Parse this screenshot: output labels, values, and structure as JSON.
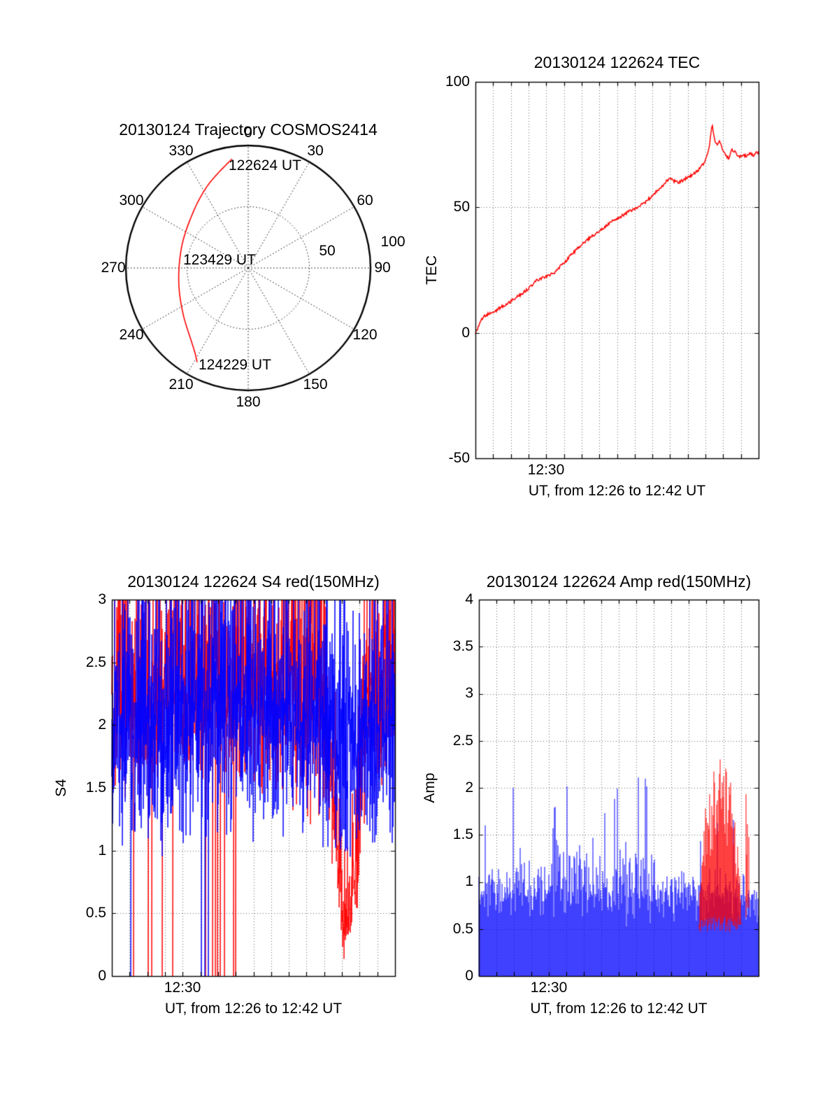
{
  "colors": {
    "red": "#ff0000",
    "blue": "#0000ff",
    "axis": "#000000",
    "grid": "#000000"
  },
  "charts": {
    "trajectory": {
      "type": "polar-trajectory",
      "title": "20130124 Trajectory COSMOS2414",
      "azimuth_labels": [
        "0",
        "30",
        "60",
        "90",
        "120",
        "150",
        "180",
        "210",
        "240",
        "270",
        "300",
        "330"
      ],
      "radial_ticks": [
        {
          "value": 50,
          "label": "50"
        },
        {
          "value": 100,
          "label": "100"
        }
      ],
      "r_max": 100,
      "path_polar_az_r": [
        [
          351.5,
          90
        ],
        [
          342,
          81
        ],
        [
          333,
          74.5
        ],
        [
          323,
          68
        ],
        [
          313,
          63
        ],
        [
          302,
          59.5
        ],
        [
          291,
          57.5
        ],
        [
          281,
          56.5
        ],
        [
          271,
          56.5
        ],
        [
          261,
          57.5
        ],
        [
          251,
          59.5
        ],
        [
          241,
          62.5
        ],
        [
          232,
          66.5
        ],
        [
          224,
          71
        ],
        [
          217,
          76.5
        ],
        [
          212,
          82
        ],
        [
          208.5,
          87.5
        ]
      ],
      "annotations": [
        {
          "text": "122624 UT"
        },
        {
          "text": "123429 UT"
        },
        {
          "text": "124229 UT"
        }
      ]
    },
    "tec": {
      "type": "line",
      "title": "20130124 122624 TEC",
      "ylabel": "TEC",
      "xlabel": "UT, from 12:26 to 12:42 UT",
      "xlim": [
        0,
        16
      ],
      "ylim": [
        -50,
        100
      ],
      "yticks": [
        100,
        50,
        0,
        -50
      ],
      "xtick": {
        "minute": 4,
        "label": "12:30"
      },
      "series": [
        {
          "name": "TEC",
          "color": "#ff0000",
          "jitter": 1.2,
          "seed": 505,
          "points": [
            [
              0,
              0
            ],
            [
              0.15,
              2
            ],
            [
              0.3,
              5
            ],
            [
              0.5,
              6.5
            ],
            [
              0.7,
              7.5
            ],
            [
              0.9,
              8
            ],
            [
              1.1,
              8.5
            ],
            [
              1.3,
              9.5
            ],
            [
              1.5,
              10.5
            ],
            [
              1.7,
              11
            ],
            [
              2,
              12.5
            ],
            [
              2.3,
              14
            ],
            [
              2.6,
              15.5
            ],
            [
              2.9,
              17
            ],
            [
              3.2,
              19
            ],
            [
              3.5,
              21
            ],
            [
              3.8,
              22
            ],
            [
              4.2,
              23
            ],
            [
              4.5,
              24
            ],
            [
              4.8,
              26.5
            ],
            [
              5.1,
              28.5
            ],
            [
              5.4,
              31
            ],
            [
              5.7,
              33
            ],
            [
              6,
              35
            ],
            [
              6.3,
              37
            ],
            [
              6.6,
              38.5
            ],
            [
              6.9,
              40
            ],
            [
              7.2,
              41.5
            ],
            [
              7.5,
              43.5
            ],
            [
              7.8,
              45
            ],
            [
              8.1,
              46
            ],
            [
              8.4,
              47
            ],
            [
              8.7,
              48.5
            ],
            [
              9,
              49.5
            ],
            [
              9.3,
              50.5
            ],
            [
              9.6,
              52
            ],
            [
              9.9,
              54
            ],
            [
              10.2,
              56
            ],
            [
              10.5,
              58
            ],
            [
              10.8,
              60.5
            ],
            [
              11,
              62
            ],
            [
              11.2,
              60.5
            ],
            [
              11.5,
              60
            ],
            [
              11.8,
              61
            ],
            [
              12,
              62
            ],
            [
              12.3,
              63
            ],
            [
              12.6,
              65
            ],
            [
              12.9,
              67.5
            ],
            [
              13.1,
              71
            ],
            [
              13.25,
              76
            ],
            [
              13.38,
              83
            ],
            [
              13.5,
              77
            ],
            [
              13.65,
              75
            ],
            [
              13.8,
              77
            ],
            [
              13.95,
              73
            ],
            [
              14.1,
              71
            ],
            [
              14.3,
              69.5
            ],
            [
              14.5,
              73
            ],
            [
              14.7,
              72
            ],
            [
              14.9,
              70
            ],
            [
              15.1,
              71
            ],
            [
              15.3,
              70.5
            ],
            [
              15.5,
              71.5
            ],
            [
              15.7,
              70.5
            ],
            [
              15.85,
              71.5
            ],
            [
              16,
              72
            ]
          ]
        }
      ]
    },
    "s4": {
      "type": "line",
      "title": "20130124 122624 S4 red(150MHz)",
      "ylabel": "S4",
      "xlabel": "UT, from 12:26 to 12:42 UT",
      "xlim": [
        0,
        16
      ],
      "ylim": [
        0,
        3
      ],
      "yticks": [
        3,
        2.5,
        2,
        1.5,
        1,
        0.5,
        0
      ],
      "xtick": {
        "minute": 4,
        "label": "12:30"
      },
      "series": [
        {
          "name": "S4 150MHz (red)",
          "color": "#ff0000",
          "seed": 101,
          "clip": [
            0,
            3
          ],
          "envelope": [
            [
              0,
              2.35,
              0.85
            ],
            [
              6,
              2.4,
              0.8
            ],
            [
              10,
              2.3,
              0.85
            ],
            [
              12,
              2.1,
              0.9
            ],
            [
              12.6,
              1.5,
              0.6
            ],
            [
              13,
              0.55,
              0.35
            ],
            [
              13.4,
              0.45,
              0.3
            ],
            [
              13.8,
              1.0,
              0.55
            ],
            [
              14.2,
              1.9,
              0.8
            ],
            [
              14.8,
              2.25,
              0.85
            ],
            [
              16,
              2.3,
              0.85
            ]
          ],
          "dropouts": {
            "t0": 0.2,
            "t1": 7.0,
            "prob": 0.07
          }
        },
        {
          "name": "S4 (blue)",
          "color": "#0000ff",
          "seed": 202,
          "clip": [
            0,
            3
          ],
          "envelope": [
            [
              0,
              1.95,
              0.85
            ],
            [
              3,
              2.05,
              0.9
            ],
            [
              7,
              2.15,
              0.9
            ],
            [
              10,
              2.2,
              0.9
            ],
            [
              12,
              2.0,
              0.9
            ],
            [
              13,
              1.85,
              0.8
            ],
            [
              14,
              1.9,
              0.8
            ],
            [
              15,
              2.0,
              0.85
            ],
            [
              16,
              2.0,
              0.85
            ]
          ],
          "dropouts": {
            "t0": 0.3,
            "t1": 7.0,
            "prob": 0.015
          }
        }
      ]
    },
    "amp": {
      "type": "line",
      "title": "20130124 122624 Amp red(150MHz)",
      "ylabel": "Amp",
      "xlabel": "UT, from 12:26 to 12:42 UT",
      "xlim": [
        0,
        16
      ],
      "ylim": [
        0,
        4
      ],
      "yticks": [
        4,
        3.5,
        3,
        2.5,
        2,
        1.5,
        1,
        0.5,
        0
      ],
      "xtick": {
        "minute": 4,
        "label": "12:30"
      },
      "blue": {
        "name": "Amp (blue)",
        "color": "#0000ff",
        "seed": 303,
        "spike_prob": 0.055,
        "spike_gain": 0.95,
        "envelope": [
          [
            0,
            0.85,
            0.28
          ],
          [
            2,
            0.9,
            0.32
          ],
          [
            4,
            0.95,
            0.42
          ],
          [
            5,
            1.0,
            0.5
          ],
          [
            6,
            0.95,
            0.48
          ],
          [
            7,
            0.9,
            0.42
          ],
          [
            8,
            0.95,
            0.48
          ],
          [
            9,
            1.0,
            0.55
          ],
          [
            9.7,
            0.95,
            0.5
          ],
          [
            10.5,
            0.9,
            0.38
          ],
          [
            11,
            0.85,
            0.3
          ],
          [
            12,
            0.85,
            0.3
          ],
          [
            13,
            0.85,
            0.32
          ],
          [
            14,
            0.9,
            0.36
          ],
          [
            15,
            0.85,
            0.3
          ],
          [
            16,
            0.8,
            0.28
          ]
        ]
      },
      "red": {
        "name": "Amp 150MHz (red)",
        "color": "#ff0000",
        "seed": 404,
        "windows": [
          {
            "t0": 12.6,
            "t1": 15.0,
            "hi": 2.4,
            "lo": 0.55,
            "prob": 1
          },
          {
            "t0": 15.05,
            "t1": 15.55,
            "hi": 1.95,
            "lo": 0.7,
            "prob": 0.3
          }
        ]
      }
    }
  },
  "chart_data": {
    "note": "Four-panel ionospheric scintillation figure, satellite COSMOS2414, 2013-01-24, pass 12:26-12:42 UT.",
    "panels": [
      "trajectory sky-plot",
      "TEC time series",
      "S4 index time series",
      "Amplitude time series"
    ]
  }
}
